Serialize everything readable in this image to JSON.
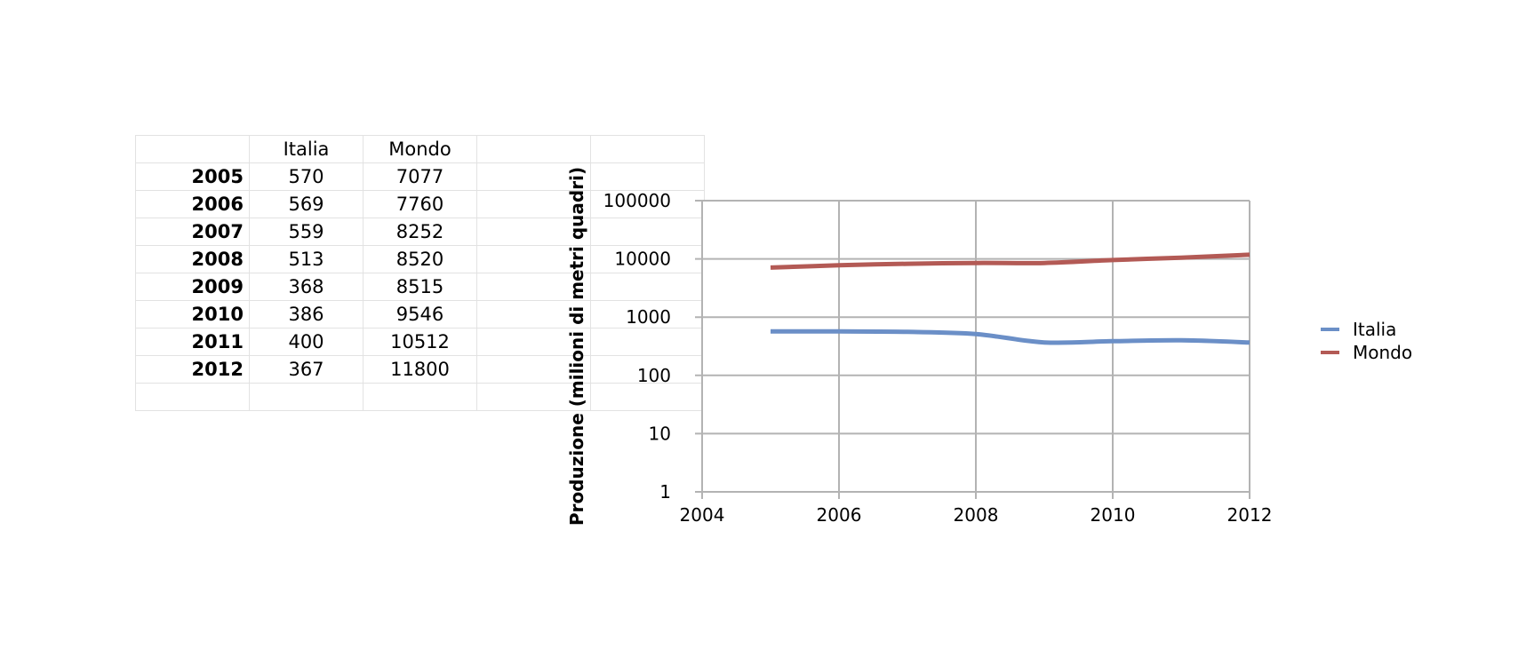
{
  "table": {
    "headers": [
      "",
      "Italia",
      "Mondo",
      "",
      ""
    ],
    "rows": [
      {
        "year": "2005",
        "italia": "570",
        "mondo": "7077"
      },
      {
        "year": "2006",
        "italia": "569",
        "mondo": "7760"
      },
      {
        "year": "2007",
        "italia": "559",
        "mondo": "8252"
      },
      {
        "year": "2008",
        "italia": "513",
        "mondo": "8520"
      },
      {
        "year": "2009",
        "italia": "368",
        "mondo": "8515"
      },
      {
        "year": "2010",
        "italia": "386",
        "mondo": "9546"
      },
      {
        "year": "2011",
        "italia": "400",
        "mondo": "10512"
      },
      {
        "year": "2012",
        "italia": "367",
        "mondo": "11800"
      }
    ]
  },
  "chart_data": {
    "type": "line",
    "title": "",
    "xlabel": "",
    "ylabel": "Produzione (milioni di metri quadri)",
    "x": [
      2005,
      2006,
      2007,
      2008,
      2009,
      2010,
      2011,
      2012
    ],
    "series": [
      {
        "name": "Italia",
        "color": "#6b8fc7",
        "values": [
          570,
          569,
          559,
          513,
          368,
          386,
          400,
          367
        ]
      },
      {
        "name": "Mondo",
        "color": "#b35a55",
        "values": [
          7077,
          7760,
          8252,
          8520,
          8515,
          9546,
          10512,
          11800
        ]
      }
    ],
    "xlim": [
      2004,
      2012
    ],
    "ylim": [
      1,
      100000
    ],
    "yscale": "log",
    "xticks": [
      "2004",
      "2006",
      "2008",
      "2010",
      "2012"
    ],
    "yticks": [
      "1",
      "10",
      "100",
      "1000",
      "10000",
      "100000"
    ],
    "grid": true,
    "legend_position": "right"
  }
}
